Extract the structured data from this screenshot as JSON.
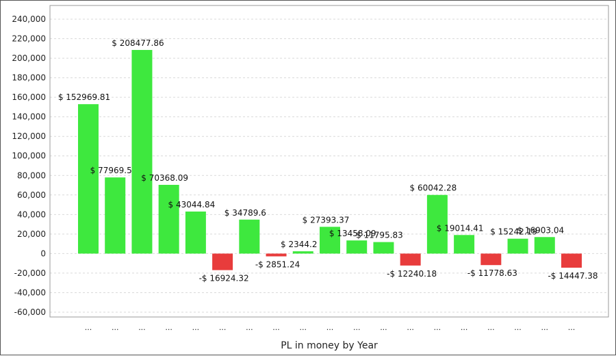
{
  "chart_data": {
    "type": "bar",
    "title": "",
    "xlabel": "PL in money by Year",
    "ylabel": "",
    "ylim": [
      -60000,
      240000
    ],
    "y_ticks": [
      240000,
      220000,
      200000,
      180000,
      160000,
      140000,
      120000,
      100000,
      80000,
      60000,
      40000,
      20000,
      0,
      -20000,
      -40000,
      -60000
    ],
    "y_tick_labels": [
      "240,000",
      "220,000",
      "200,000",
      "180,000",
      "160,000",
      "140,000",
      "120,000",
      "100,000",
      "80,000",
      "60,000",
      "40,000",
      "20,000",
      "0",
      "-20,000",
      "-40,000",
      "-60,000"
    ],
    "grid": true,
    "categories": [
      "...",
      "...",
      "...",
      "...",
      "...",
      "...",
      "...",
      "...",
      "...",
      "...",
      "...",
      "...",
      "...",
      "...",
      "...",
      "...",
      "...",
      "...",
      "..."
    ],
    "values": [
      152969.81,
      77969.5,
      208477.86,
      70368.09,
      43044.84,
      -16924.32,
      34789.6,
      -2851.24,
      2344.2,
      27393.37,
      13458.09,
      11795.83,
      -12240.18,
      60042.28,
      19014.41,
      -11778.63,
      15242.19,
      16903.04,
      -14447.38
    ],
    "data_labels": [
      "$ 152969.81",
      "$ 77969.5",
      "$ 208477.86",
      "$ 70368.09",
      "$ 43044.84",
      "-$ 16924.32",
      "$ 34789.6",
      "-$ 2851.24",
      "$ 2344.2",
      "$ 27393.37",
      "$ 13458.09",
      "$ 11795.83",
      "-$ 12240.18",
      "$ 60042.28",
      "$ 19014.41",
      "-$ 11778.63",
      "$ 15242.19",
      "$ 16903.04",
      "-$ 14447.38"
    ],
    "colors": {
      "positive": "#3ee83e",
      "negative": "#e83c3c",
      "grid": "#d9d9d9",
      "axis": "#999999"
    }
  }
}
